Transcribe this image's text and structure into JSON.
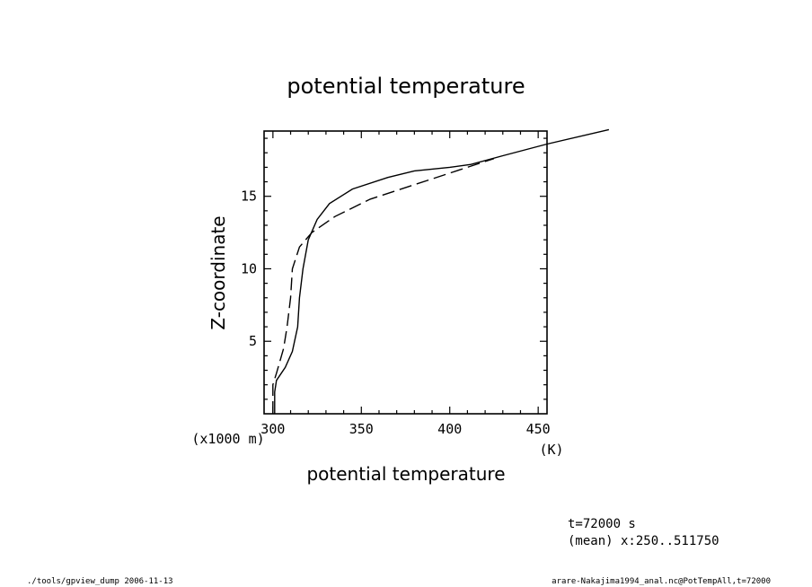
{
  "chart_data": {
    "type": "line",
    "title": "potential temperature",
    "xlabel": "potential temperature",
    "xunit": "(K)",
    "ylabel": "Z-coordinate",
    "yunit": "(x1000 m)",
    "xlim": [
      295,
      455
    ],
    "ylim": [
      0,
      19.5
    ],
    "xticks": [
      300,
      350,
      400,
      450
    ],
    "yticks": [
      5,
      10,
      15
    ],
    "grid": false,
    "legend": "none",
    "series": [
      {
        "style": "solid",
        "points": [
          [
            301,
            0
          ],
          [
            301,
            1.5
          ],
          [
            302,
            2.3
          ],
          [
            307,
            3.2
          ],
          [
            311,
            4.3
          ],
          [
            314,
            6
          ],
          [
            315,
            8
          ],
          [
            317,
            10
          ],
          [
            320,
            12
          ],
          [
            325,
            13.4
          ],
          [
            332,
            14.5
          ],
          [
            345,
            15.5
          ],
          [
            365,
            16.3
          ],
          [
            380,
            16.75
          ],
          [
            400,
            17
          ],
          [
            412,
            17.2
          ],
          [
            430,
            17.8
          ],
          [
            455,
            18.6
          ],
          [
            490,
            19.6
          ]
        ]
      },
      {
        "style": "dashed",
        "points": [
          [
            300,
            0
          ],
          [
            300,
            2
          ],
          [
            302,
            2.8
          ],
          [
            306,
            4.5
          ],
          [
            308,
            6
          ],
          [
            310,
            8
          ],
          [
            311,
            10
          ],
          [
            315,
            11.5
          ],
          [
            322,
            12.5
          ],
          [
            335,
            13.6
          ],
          [
            355,
            14.8
          ],
          [
            380,
            15.8
          ],
          [
            405,
            16.8
          ],
          [
            425,
            17.6
          ]
        ]
      }
    ]
  },
  "footer": {
    "time": "t=72000 s",
    "mean": "(mean) x:250..511750",
    "left": "./tools/gpview_dump  2006-11-13",
    "right": "arare-Nakajima1994_anal.nc@PotTempAll,t=72000"
  }
}
